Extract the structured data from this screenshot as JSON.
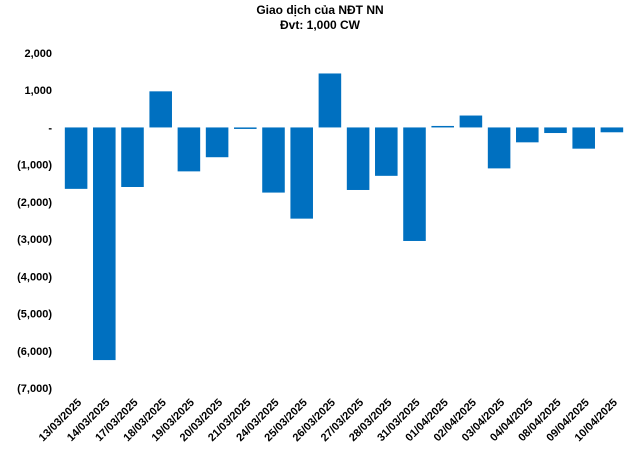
{
  "chart_data": {
    "type": "bar",
    "title": "Giao dịch của NĐT NN",
    "subtitle": "Đvt: 1,000 CW",
    "categories": [
      "13/03/2025",
      "14/03/2025",
      "17/03/2025",
      "18/03/2025",
      "19/03/2025",
      "20/03/2025",
      "21/03/2025",
      "24/03/2025",
      "25/03/2025",
      "26/03/2025",
      "27/03/2025",
      "28/03/2025",
      "31/03/2025",
      "01/04/2025",
      "02/04/2025",
      "03/04/2025",
      "04/04/2025",
      "08/04/2025",
      "09/04/2025",
      "10/04/2025"
    ],
    "values": [
      -1650,
      -6250,
      -1600,
      970,
      -1180,
      -800,
      -40,
      -1750,
      -2450,
      1450,
      -1680,
      -1300,
      -3050,
      20,
      320,
      -1100,
      -400,
      -150,
      -570,
      -130
    ],
    "y_ticks": [
      "2,000",
      "1,000",
      "-",
      "(1,000)",
      "(2,000)",
      "(3,000)",
      "(4,000)",
      "(5,000)",
      "(6,000)",
      "(7,000)"
    ],
    "ylim": [
      -7000,
      2000
    ],
    "grid": false,
    "bar_color": "#0070C0"
  }
}
